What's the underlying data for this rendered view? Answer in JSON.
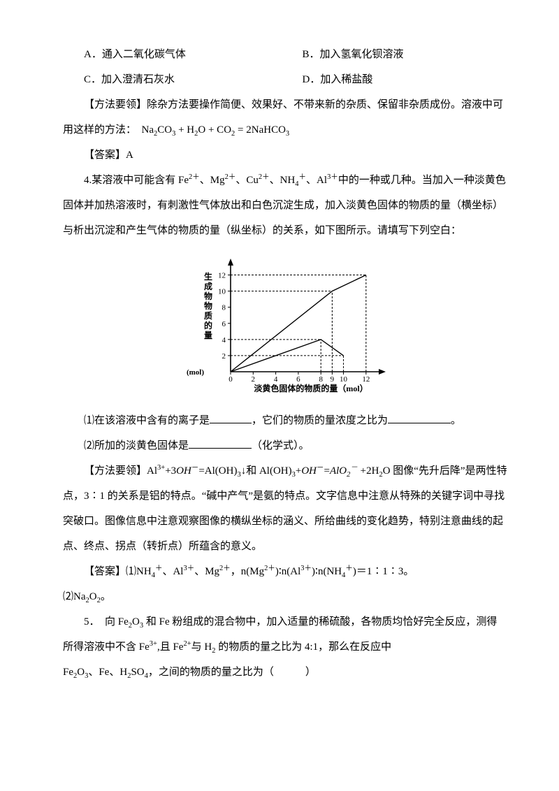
{
  "options": {
    "A": {
      "tag": "A．",
      "text": "通入二氧化碳气体"
    },
    "B": {
      "tag": "B．",
      "text": "加入氢氧化钡溶液"
    },
    "C": {
      "tag": "C．",
      "text": "加入澄清石灰水"
    },
    "D": {
      "tag": "D．",
      "text": "加入稀盐酸"
    }
  },
  "method1": {
    "label": "【方法要领】",
    "text": "除杂方法要操作简便、效果好、不带来新的杂质、保留非杂质成份。溶液中可用这样的方法：　Na",
    "eq_tail": "CO",
    "eq_tail2": " + H",
    "eq_tail3": "O + CO",
    "eq_tail4": " = 2NaHCO"
  },
  "answer1": {
    "label": "【答案】",
    "value": "A"
  },
  "q4": {
    "num": "4.",
    "line1": "某溶液中可能含有 Fe",
    "line1b": "、Mg",
    "line1c": "、Cu",
    "line1d": "、NH",
    "line1e": "、Al",
    "line1f": "中的一种或几种。当加入一种淡黄色固体并加热溶液时，有刺激性气体放出和白色沉淀生成，加入淡黄色固体的物质的量（横坐标）与析出沉淀和产生气体的物质的量（纵坐标）的关系，如下图所示。请填写下列空白："
  },
  "chart": {
    "ylabel_chars": [
      "生",
      "成",
      "物",
      "物",
      "质",
      "的",
      "量"
    ],
    "yunit": "(mol)",
    "xlabel": "淡黄色固体的物质的量（mol）",
    "xticks": [
      "0",
      "2",
      "4",
      "6",
      "8",
      "9",
      "10",
      "12"
    ],
    "yticks": [
      "2",
      "4",
      "6",
      "8",
      "10",
      "12"
    ],
    "xtick_pos": [
      0,
      2,
      4,
      6,
      8,
      9,
      10,
      12
    ],
    "ytick_pos": [
      2,
      4,
      6,
      8,
      10,
      12
    ],
    "xlim": [
      0,
      13
    ],
    "ylim": [
      0,
      13
    ],
    "series_upper": [
      [
        0,
        0
      ],
      [
        9,
        10
      ],
      [
        12,
        12
      ]
    ],
    "series_lower": [
      [
        0,
        0
      ],
      [
        8,
        4
      ],
      [
        10,
        2
      ]
    ],
    "dash_segments": [
      [
        [
          8,
          0
        ],
        [
          8,
          4
        ]
      ],
      [
        [
          9,
          0
        ],
        [
          9,
          10
        ]
      ],
      [
        [
          10,
          0
        ],
        [
          10,
          2
        ]
      ],
      [
        [
          12,
          0
        ],
        [
          12,
          12
        ]
      ],
      [
        [
          0,
          10
        ],
        [
          9,
          10
        ]
      ],
      [
        [
          0,
          4
        ],
        [
          8,
          4
        ]
      ],
      [
        [
          0,
          12
        ],
        [
          12,
          12
        ]
      ],
      [
        [
          0,
          2
        ],
        [
          10,
          2
        ]
      ]
    ],
    "stroke": "#000000",
    "dash": "3,2",
    "line_width": 1.4,
    "font_size": 11
  },
  "q4sub": {
    "s1a": "⑴在该溶液中含有的离子是",
    "s1b": "，它们的物质的量浓度之比为",
    "s1c": "。",
    "s2a": "⑵所加的淡黄色固体是",
    "s2b": "（化学式）。"
  },
  "method2": {
    "label": "【方法要领】",
    "p1a": "Al",
    "p1b": "+3",
    "p1c": "=Al(OH)",
    "p1d": "↓和 Al(OH)",
    "p1e": "+",
    "p1f": "=",
    "p1g": " +2H",
    "p1h": "O 图像“先升后降”是两性特点，3∶1 的关系是铝的特点。“碱中产气”是氨的特点。文字信息中注意从特殊的关键字词中寻找突破口。图像信息中注意观察图像的横纵坐标的涵义、所给曲线的变化趋势，特别注意曲线的起点、终点、拐点（转折点）所蕴含的意义。",
    "OH": "OH",
    "AlO2": "AlO"
  },
  "answer2": {
    "label": "【答案】",
    "p1": "⑴NH",
    "p1b": "、Al",
    "p1c": "、Mg",
    "p1d": "，n(Mg",
    "p1e": ")∶n(Al",
    "p1f": ")∶n(NH",
    "p1g": ")＝1∶1∶3。",
    "p2": "⑵Na",
    "p2b": "O",
    "p2c": "。"
  },
  "q5": {
    "num": "5．",
    "line1a": "　向 Fe",
    "line1b": "O",
    "line1c": " 和 Fe 粉组成的混合物中，加入适量的稀硫酸，各物质均恰好完全反应，测得",
    "line2a": "所得溶液中不含 Fe",
    "line2b": ",且 Fe",
    "line2c": "与 H",
    "line2d": " 的物质的量之比为 4:1，那么在反应中",
    "line3a": "Fe",
    "line3b": "O",
    "line3c": "、Fe、H",
    "line3d": "SO",
    "line3e": "，之间的物质的量之比为（　　　）"
  }
}
